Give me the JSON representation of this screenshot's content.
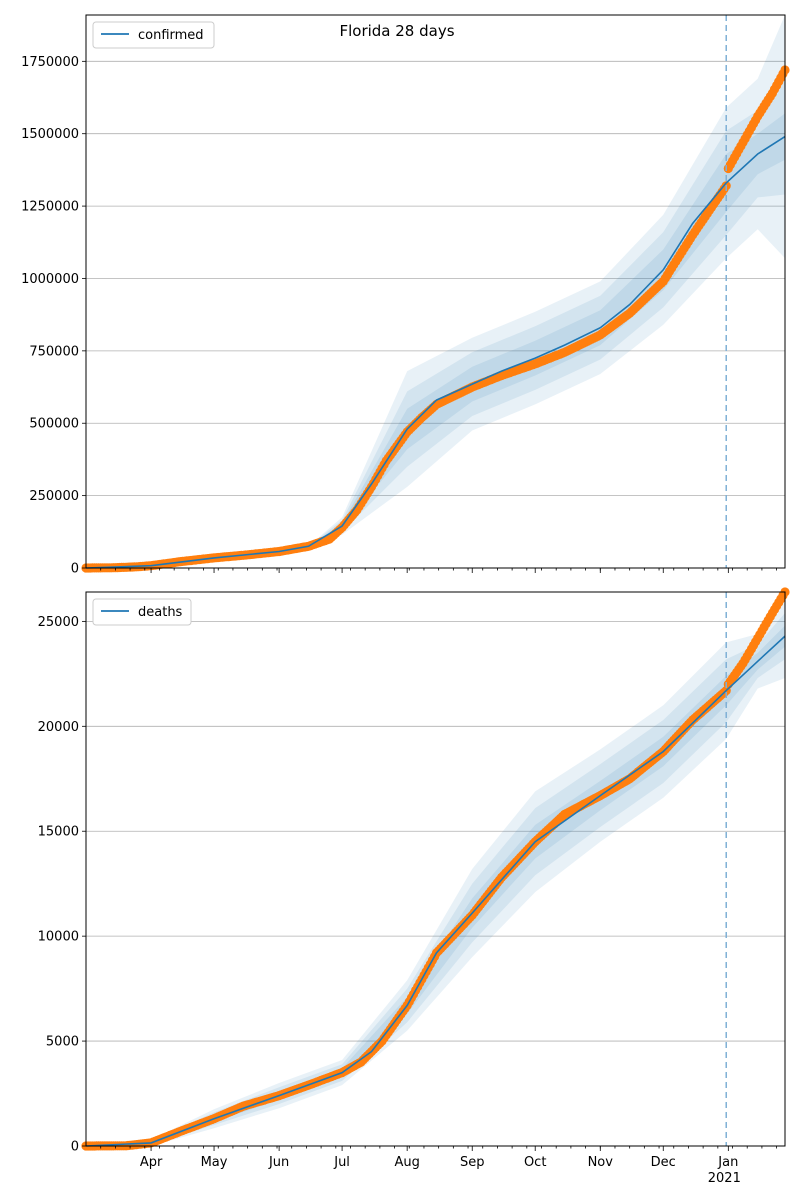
{
  "title": "Florida 28 days",
  "colors": {
    "model": "#1f77b4",
    "observed": "#ff7f0e",
    "band": "#1f77b4",
    "grid": "#b0b0b0",
    "cutoff": "#7fb0d6"
  },
  "x_axis": {
    "start": "2020-03-01",
    "end": "2021-01-28",
    "cutoff": "2020-12-31",
    "month_ticks": [
      {
        "date": "2020-04-01",
        "label": "Apr"
      },
      {
        "date": "2020-05-01",
        "label": "May"
      },
      {
        "date": "2020-06-01",
        "label": "Jun"
      },
      {
        "date": "2020-07-01",
        "label": "Jul"
      },
      {
        "date": "2020-08-01",
        "label": "Aug"
      },
      {
        "date": "2020-09-01",
        "label": "Sep"
      },
      {
        "date": "2020-10-01",
        "label": "Oct"
      },
      {
        "date": "2020-11-01",
        "label": "Nov"
      },
      {
        "date": "2020-12-01",
        "label": "Dec"
      },
      {
        "date": "2021-01-01",
        "label": "Jan"
      }
    ],
    "year_label": "2021"
  },
  "chart_data": [
    {
      "type": "line",
      "legend": "confirmed",
      "legend_loc": "upper left",
      "grid": "y",
      "ylim": [
        0,
        1910000
      ],
      "yticks": [
        {
          "value": 0,
          "label": "0"
        },
        {
          "value": 250000,
          "label": "250000"
        },
        {
          "value": 500000,
          "label": "500000"
        },
        {
          "value": 750000,
          "label": "750000"
        },
        {
          "value": 1000000,
          "label": "1000000"
        },
        {
          "value": 1250000,
          "label": "1250000"
        },
        {
          "value": 1500000,
          "label": "1500000"
        },
        {
          "value": 1750000,
          "label": "1750000"
        }
      ],
      "observed": [
        [
          "2020-03-01",
          0
        ],
        [
          "2020-03-15",
          1000
        ],
        [
          "2020-03-25",
          4000
        ],
        [
          "2020-04-01",
          8000
        ],
        [
          "2020-04-15",
          22000
        ],
        [
          "2020-05-01",
          35000
        ],
        [
          "2020-05-15",
          44000
        ],
        [
          "2020-06-01",
          57000
        ],
        [
          "2020-06-15",
          75000
        ],
        [
          "2020-06-25",
          100000
        ],
        [
          "2020-07-01",
          140000
        ],
        [
          "2020-07-08",
          200000
        ],
        [
          "2020-07-15",
          280000
        ],
        [
          "2020-07-22",
          370000
        ],
        [
          "2020-08-01",
          470000
        ],
        [
          "2020-08-08",
          520000
        ],
        [
          "2020-08-15",
          565000
        ],
        [
          "2020-09-01",
          625000
        ],
        [
          "2020-09-15",
          665000
        ],
        [
          "2020-10-01",
          705000
        ],
        [
          "2020-10-15",
          745000
        ],
        [
          "2020-11-01",
          805000
        ],
        [
          "2020-11-15",
          880000
        ],
        [
          "2020-12-01",
          990000
        ],
        [
          "2020-12-15",
          1150000
        ],
        [
          "2020-12-31",
          1320000
        ],
        [
          "2021-01-01",
          1380000
        ],
        [
          "2021-01-08",
          1470000
        ],
        [
          "2021-01-15",
          1560000
        ],
        [
          "2021-01-22",
          1640000
        ],
        [
          "2021-01-28",
          1720000
        ]
      ],
      "model": [
        [
          "2020-03-01",
          0
        ],
        [
          "2020-04-01",
          8000
        ],
        [
          "2020-05-01",
          35000
        ],
        [
          "2020-06-01",
          57000
        ],
        [
          "2020-06-15",
          75000
        ],
        [
          "2020-07-01",
          145000
        ],
        [
          "2020-07-15",
          290000
        ],
        [
          "2020-08-01",
          480000
        ],
        [
          "2020-08-15",
          580000
        ],
        [
          "2020-09-01",
          635000
        ],
        [
          "2020-09-15",
          680000
        ],
        [
          "2020-10-01",
          725000
        ],
        [
          "2020-10-15",
          770000
        ],
        [
          "2020-11-01",
          830000
        ],
        [
          "2020-11-15",
          910000
        ],
        [
          "2020-12-01",
          1030000
        ],
        [
          "2020-12-15",
          1190000
        ],
        [
          "2020-12-31",
          1330000
        ],
        [
          "2021-01-15",
          1430000
        ],
        [
          "2021-01-28",
          1490000
        ]
      ],
      "band_x": [
        "2020-03-01",
        "2020-06-15",
        "2020-07-01",
        "2020-08-01",
        "2020-09-01",
        "2020-10-01",
        "2020-11-01",
        "2020-12-01",
        "2020-12-31",
        "2021-01-15",
        "2021-01-28"
      ],
      "band_center": [
        0,
        75000,
        145000,
        480000,
        635000,
        725000,
        830000,
        1030000,
        1330000,
        1430000,
        1490000
      ],
      "band_widths": [
        [
          0,
          0,
          10000,
          70000,
          60000,
          60000,
          60000,
          70000,
          100000,
          70000,
          80000
        ],
        [
          0,
          0,
          20000,
          130000,
          110000,
          110000,
          110000,
          130000,
          180000,
          150000,
          200000
        ],
        [
          0,
          0,
          30000,
          200000,
          160000,
          160000,
          160000,
          190000,
          260000,
          260000,
          420000
        ]
      ]
    },
    {
      "type": "line",
      "legend": "deaths",
      "legend_loc": "upper left",
      "grid": "y",
      "ylim": [
        0,
        26400
      ],
      "yticks": [
        {
          "value": 0,
          "label": "0"
        },
        {
          "value": 5000,
          "label": "5000"
        },
        {
          "value": 10000,
          "label": "10000"
        },
        {
          "value": 15000,
          "label": "15000"
        },
        {
          "value": 20000,
          "label": "20000"
        },
        {
          "value": 25000,
          "label": "25000"
        }
      ],
      "observed": [
        [
          "2020-03-01",
          0
        ],
        [
          "2020-03-20",
          10
        ],
        [
          "2020-04-01",
          150
        ],
        [
          "2020-04-15",
          700
        ],
        [
          "2020-05-01",
          1300
        ],
        [
          "2020-05-15",
          1900
        ],
        [
          "2020-06-01",
          2400
        ],
        [
          "2020-06-15",
          2900
        ],
        [
          "2020-07-01",
          3500
        ],
        [
          "2020-07-10",
          4000
        ],
        [
          "2020-07-20",
          5000
        ],
        [
          "2020-08-01",
          6700
        ],
        [
          "2020-08-15",
          9200
        ],
        [
          "2020-09-01",
          11000
        ],
        [
          "2020-09-15",
          12800
        ],
        [
          "2020-10-01",
          14500
        ],
        [
          "2020-10-15",
          15800
        ],
        [
          "2020-11-01",
          16700
        ],
        [
          "2020-11-15",
          17500
        ],
        [
          "2020-12-01",
          18800
        ],
        [
          "2020-12-15",
          20300
        ],
        [
          "2020-12-31",
          21700
        ],
        [
          "2021-01-01",
          22000
        ],
        [
          "2021-01-08",
          23000
        ],
        [
          "2021-01-15",
          24200
        ],
        [
          "2021-01-22",
          25400
        ],
        [
          "2021-01-28",
          26400
        ]
      ],
      "model": [
        [
          "2020-03-01",
          0
        ],
        [
          "2020-04-01",
          150
        ],
        [
          "2020-05-01",
          1300
        ],
        [
          "2020-06-01",
          2400
        ],
        [
          "2020-07-01",
          3500
        ],
        [
          "2020-07-15",
          4500
        ],
        [
          "2020-08-01",
          6700
        ],
        [
          "2020-08-15",
          9200
        ],
        [
          "2020-09-01",
          11100
        ],
        [
          "2020-10-01",
          14500
        ],
        [
          "2020-11-01",
          16700
        ],
        [
          "2020-12-01",
          18800
        ],
        [
          "2020-12-31",
          21700
        ],
        [
          "2021-01-15",
          23100
        ],
        [
          "2021-01-28",
          24300
        ]
      ],
      "band_x": [
        "2020-03-01",
        "2020-04-01",
        "2020-05-01",
        "2020-06-01",
        "2020-07-01",
        "2020-08-01",
        "2020-09-01",
        "2020-10-01",
        "2020-11-01",
        "2020-12-01",
        "2020-12-31",
        "2021-01-15",
        "2021-01-28"
      ],
      "band_center": [
        0,
        150,
        1300,
        2400,
        3500,
        6700,
        11100,
        14500,
        16700,
        18800,
        21700,
        23100,
        24300
      ],
      "band_widths": [
        [
          0,
          50,
          150,
          200,
          200,
          400,
          700,
          800,
          700,
          700,
          700,
          400,
          500
        ],
        [
          0,
          100,
          300,
          400,
          400,
          800,
          1400,
          1600,
          1500,
          1500,
          1500,
          800,
          1100
        ],
        [
          0,
          150,
          450,
          600,
          600,
          1200,
          2100,
          2400,
          2200,
          2200,
          2300,
          1300,
          2000
        ]
      ]
    }
  ]
}
